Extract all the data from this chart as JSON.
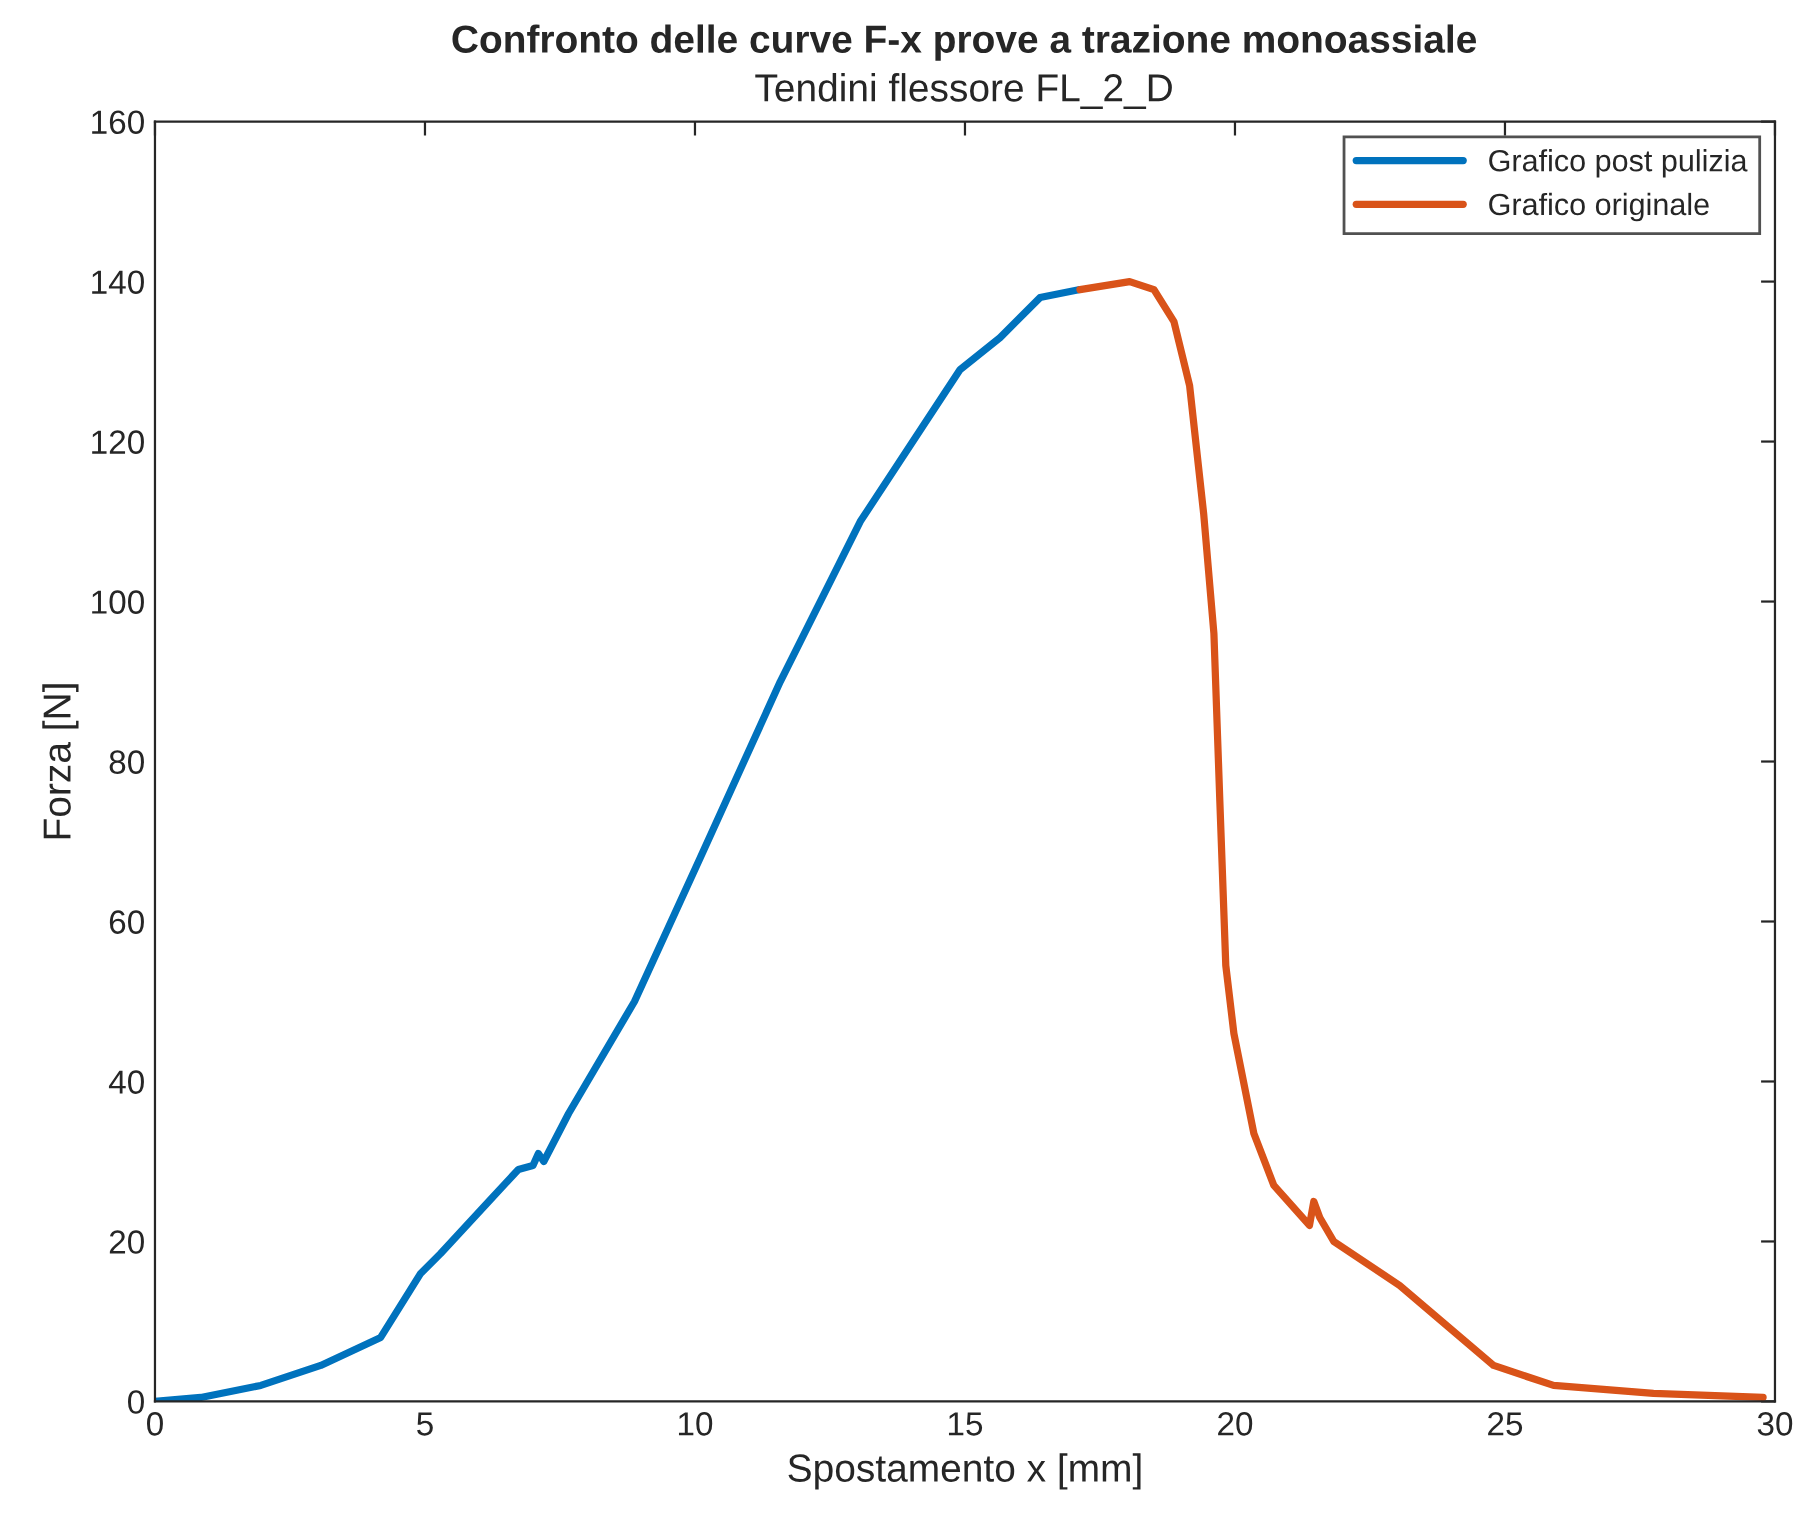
{
  "chart_data": {
    "type": "line",
    "title": "Confronto delle curve F-x prove a trazione monoassiale",
    "subtitle": "Tendini flessore FL_2_D",
    "xlabel": "Spostamento x [mm]",
    "ylabel": "Forza [N]",
    "xlim": [
      0,
      30
    ],
    "xticks": [
      0,
      5,
      10,
      15,
      20,
      25,
      30
    ],
    "ylim": [
      0,
      160
    ],
    "yticks": [
      0,
      20,
      40,
      60,
      80,
      100,
      120,
      140,
      160
    ],
    "grid": false,
    "legend": "top right",
    "line_style": "solid",
    "marker": "none",
    "series": [
      {
        "name": "Grafico post pulizia",
        "color": "#0072bd",
        "x": [
          0,
          0.85,
          1.96,
          3.07,
          4.18,
          4.92,
          5.29,
          6.18,
          6.73,
          7.0,
          7.1,
          7.2,
          7.66,
          8.88,
          10.1,
          11.58,
          13.06,
          14.91,
          15.65,
          16.39,
          17.13
        ],
        "values": [
          0,
          0.5,
          2,
          4.5,
          8,
          16,
          18.5,
          25,
          29,
          29.5,
          31,
          30,
          36,
          50,
          68,
          90,
          110,
          129,
          133,
          138,
          139
        ]
      },
      {
        "name": "Grafico originale",
        "color": "#d95319",
        "x": [
          17.13,
          18.05,
          18.5,
          18.87,
          19.16,
          19.42,
          19.61,
          19.72,
          19.83,
          19.98,
          20.35,
          20.72,
          21.38,
          21.46,
          21.57,
          21.83,
          23.05,
          24.79,
          25.9,
          27.75,
          29.78
        ],
        "values": [
          139,
          140,
          139,
          135,
          127,
          111,
          96,
          75,
          54.5,
          46,
          33.5,
          27,
          22,
          25,
          23,
          20,
          14.5,
          4.5,
          2,
          1,
          0.5
        ]
      }
    ]
  }
}
